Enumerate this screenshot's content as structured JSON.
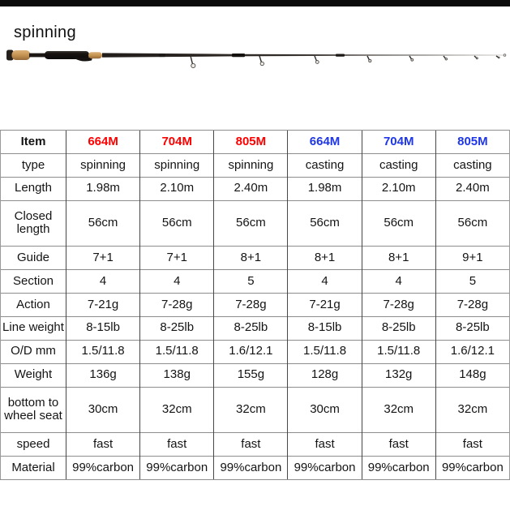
{
  "page": {
    "title_label": "spinning"
  },
  "colors": {
    "top_bar": "#0b0b0b",
    "header_red": "#ff0000",
    "header_blue": "#1e36e8",
    "cork": "#c89b63",
    "handle_black": "#161311"
  },
  "hero": {
    "rod_image": "spinning-fishing-rod-photo"
  },
  "table": {
    "corner_label": "Item",
    "columns": [
      {
        "label": "664M",
        "color": "#ff0000"
      },
      {
        "label": "704M",
        "color": "#ff0000"
      },
      {
        "label": "805M",
        "color": "#ff0000"
      },
      {
        "label": "664M",
        "color": "#1e36e8"
      },
      {
        "label": "704M",
        "color": "#1e36e8"
      },
      {
        "label": "805M",
        "color": "#1e36e8"
      }
    ],
    "rows": [
      {
        "label": "type",
        "values": [
          "spinning",
          "spinning",
          "spinning",
          "casting",
          "casting",
          "casting"
        ]
      },
      {
        "label": "Length",
        "values": [
          "1.98m",
          "2.10m",
          "2.40m",
          "1.98m",
          "2.10m",
          "2.40m"
        ]
      },
      {
        "label": "Closed length",
        "values": [
          "56cm",
          "56cm",
          "56cm",
          "56cm",
          "56cm",
          "56cm"
        ]
      },
      {
        "label": "Guide",
        "values": [
          "7+1",
          "7+1",
          "8+1",
          "8+1",
          "8+1",
          "9+1"
        ]
      },
      {
        "label": "Section",
        "values": [
          "4",
          "4",
          "5",
          "4",
          "4",
          "5"
        ]
      },
      {
        "label": "Action",
        "values": [
          "7-21g",
          "7-28g",
          "7-28g",
          "7-21g",
          "7-28g",
          "7-28g"
        ]
      },
      {
        "label": "Line weight",
        "values": [
          "8-15lb",
          "8-25lb",
          "8-25lb",
          "8-15lb",
          "8-25lb",
          "8-25lb"
        ]
      },
      {
        "label": "O/D mm",
        "values": [
          "1.5/11.8",
          "1.5/11.8",
          "1.6/12.1",
          "1.5/11.8",
          "1.5/11.8",
          "1.6/12.1"
        ]
      },
      {
        "label": "Weight",
        "values": [
          "136g",
          "138g",
          "155g",
          "128g",
          "132g",
          "148g"
        ]
      },
      {
        "label": "bottom to wheel seat",
        "values": [
          "30cm",
          "32cm",
          "32cm",
          "30cm",
          "32cm",
          "32cm"
        ]
      },
      {
        "label": "speed",
        "values": [
          "fast",
          "fast",
          "fast",
          "fast",
          "fast",
          "fast"
        ]
      },
      {
        "label": "Material",
        "values": [
          "99%carbon",
          "99%carbon",
          "99%carbon",
          "99%carbon",
          "99%carbon",
          "99%carbon"
        ]
      }
    ]
  }
}
